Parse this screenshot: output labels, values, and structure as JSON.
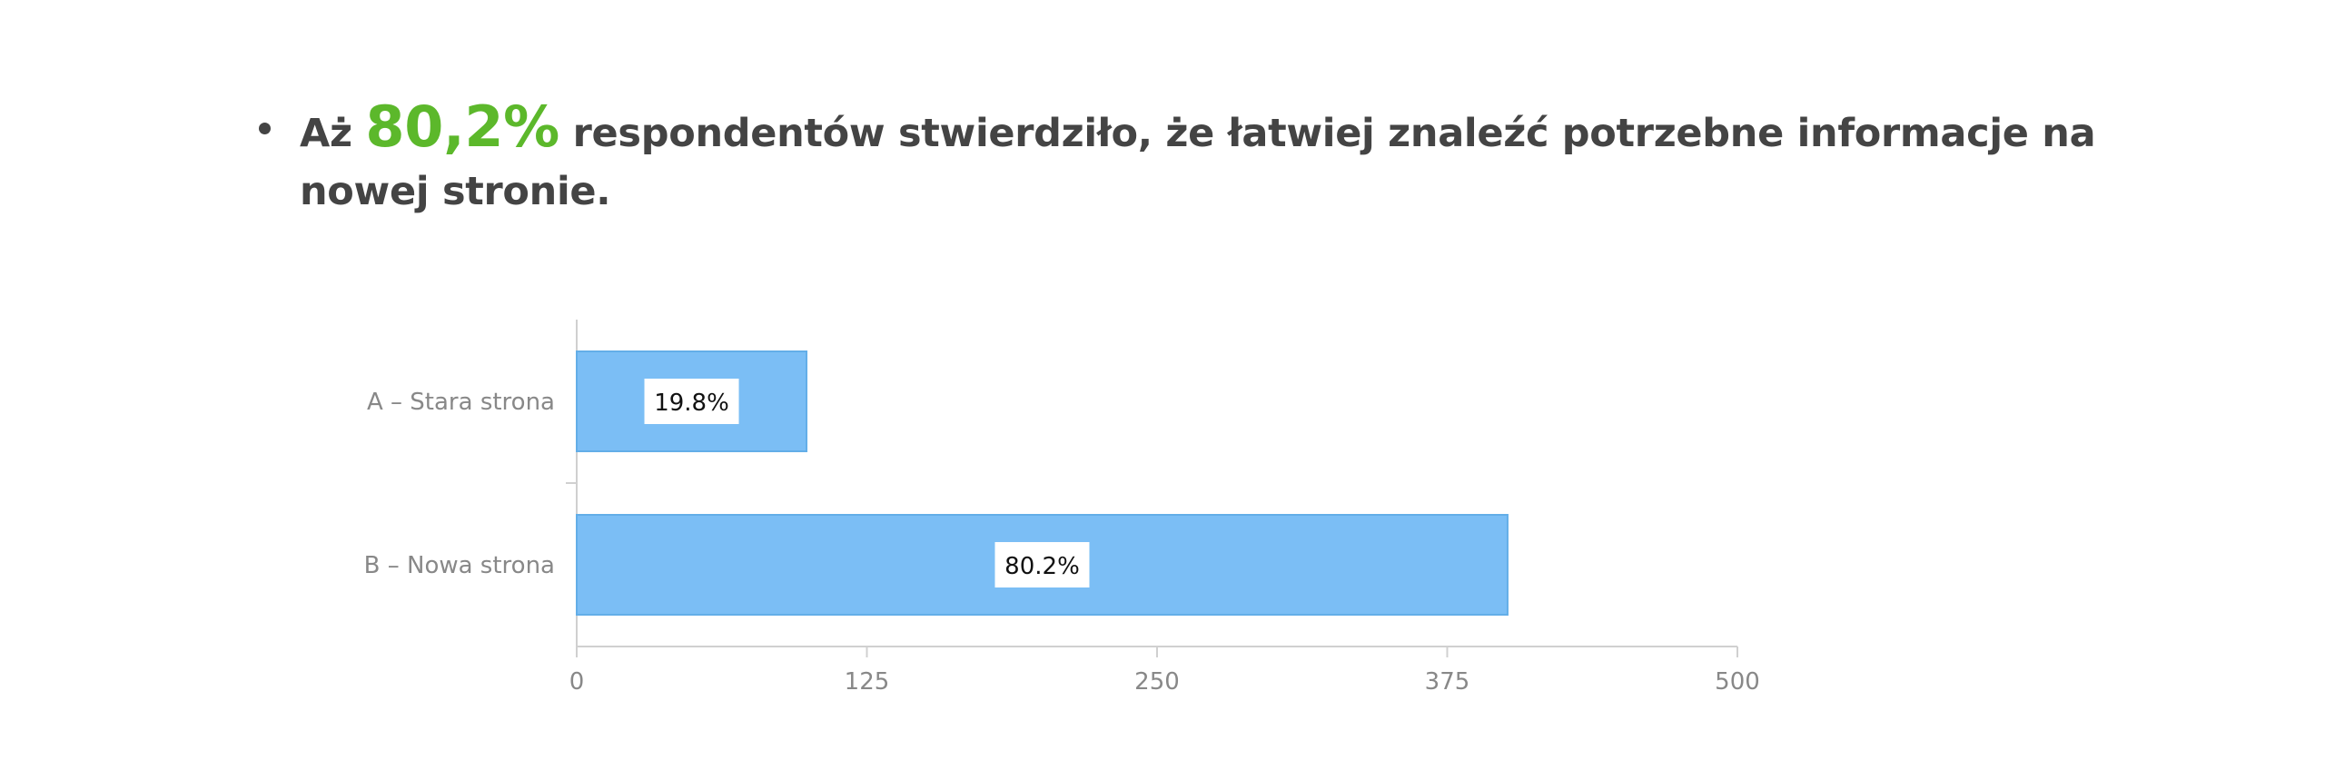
{
  "headline": {
    "prefix": "Aż",
    "highlight": "80,2%",
    "suffix": "respondentów stwierdziło, że łatwiej znaleźć potrzebne informacje na nowej stronie."
  },
  "colors": {
    "bar": "#7bbef5",
    "bar_border": "#63aee8",
    "highlight": "#5cb82b",
    "text": "#444444",
    "axis": "#d0d0d0",
    "tick_label": "#888888"
  },
  "chart_data": {
    "type": "bar",
    "orientation": "horizontal",
    "categories": [
      "A – Stara strona",
      "B – Nowa strona"
    ],
    "values": [
      99,
      401
    ],
    "data_labels": [
      "19.8%",
      "80.2%"
    ],
    "xlim": [
      0,
      500
    ],
    "x_ticks": [
      0,
      125,
      250,
      375,
      500
    ],
    "grid": false,
    "legend": "none"
  }
}
